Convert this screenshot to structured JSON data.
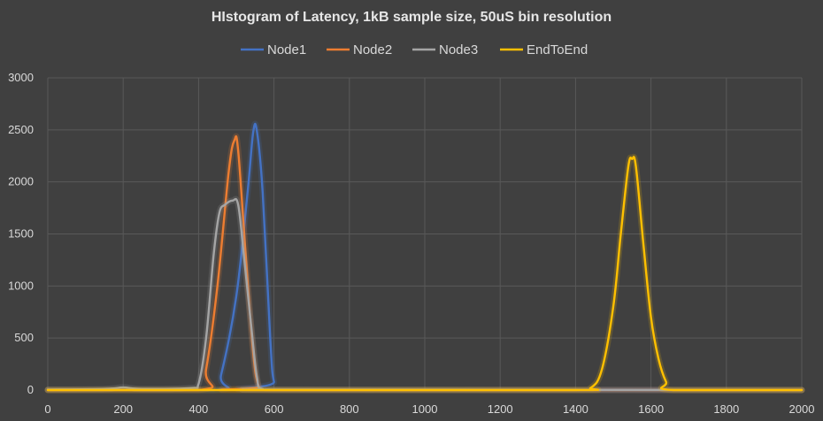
{
  "chart_data": {
    "type": "line",
    "title": "HIstogram of Latency, 1kB sample size, 50uS bin resolution",
    "xlabel": "",
    "ylabel": "",
    "xlim": [
      0,
      2000
    ],
    "ylim": [
      0,
      3000
    ],
    "x_ticks": [
      "0",
      "200",
      "400",
      "600",
      "800",
      "1000",
      "1200",
      "1400",
      "1600",
      "1800",
      "2000"
    ],
    "y_ticks": [
      "0",
      "500",
      "1000",
      "1500",
      "2000",
      "2500",
      "3000"
    ],
    "grid": true,
    "legend_position": "top",
    "series": [
      {
        "name": "Node1",
        "color": "#4472c4",
        "points": [
          [
            0,
            0
          ],
          [
            440,
            0
          ],
          [
            460,
            150
          ],
          [
            500,
            900
          ],
          [
            530,
            1900
          ],
          [
            545,
            2480
          ],
          [
            555,
            2480
          ],
          [
            570,
            1900
          ],
          [
            590,
            500
          ],
          [
            600,
            80
          ],
          [
            620,
            0
          ],
          [
            2000,
            0
          ]
        ]
      },
      {
        "name": "Node2",
        "color": "#ed7d31",
        "points": [
          [
            0,
            0
          ],
          [
            400,
            0
          ],
          [
            420,
            200
          ],
          [
            450,
            1000
          ],
          [
            480,
            2100
          ],
          [
            495,
            2400
          ],
          [
            505,
            2300
          ],
          [
            525,
            1300
          ],
          [
            545,
            350
          ],
          [
            560,
            30
          ],
          [
            580,
            0
          ],
          [
            2000,
            0
          ]
        ]
      },
      {
        "name": "Node3",
        "color": "#a5a5a5",
        "points": [
          [
            0,
            5
          ],
          [
            150,
            10
          ],
          [
            200,
            25
          ],
          [
            250,
            10
          ],
          [
            380,
            20
          ],
          [
            400,
            60
          ],
          [
            420,
            500
          ],
          [
            440,
            1300
          ],
          [
            455,
            1700
          ],
          [
            470,
            1780
          ],
          [
            490,
            1820
          ],
          [
            505,
            1780
          ],
          [
            520,
            1300
          ],
          [
            540,
            600
          ],
          [
            555,
            120
          ],
          [
            570,
            10
          ],
          [
            650,
            5
          ],
          [
            2000,
            0
          ]
        ]
      },
      {
        "name": "EndToEnd",
        "color": "#ffc000",
        "points": [
          [
            0,
            0
          ],
          [
            700,
            0
          ],
          [
            800,
            0
          ],
          [
            1400,
            0
          ],
          [
            1440,
            20
          ],
          [
            1470,
            200
          ],
          [
            1500,
            800
          ],
          [
            1520,
            1500
          ],
          [
            1540,
            2150
          ],
          [
            1550,
            2220
          ],
          [
            1560,
            2150
          ],
          [
            1580,
            1400
          ],
          [
            1600,
            700
          ],
          [
            1620,
            300
          ],
          [
            1640,
            80
          ],
          [
            1660,
            0
          ],
          [
            2000,
            0
          ]
        ]
      }
    ]
  }
}
